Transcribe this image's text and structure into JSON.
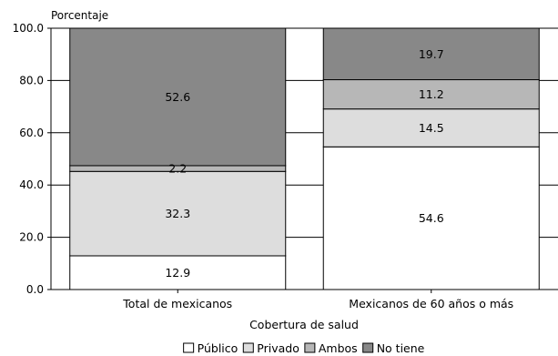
{
  "chart_data": {
    "type": "bar",
    "stacked": true,
    "title": "",
    "ylabel": "Porcentaje",
    "xlabel": "Cobertura de salud",
    "ylim": [
      0,
      100
    ],
    "yticks": [
      "0.0",
      "20.0",
      "40.0",
      "60.0",
      "80.0",
      "100.0"
    ],
    "categories": [
      "Total de mexicanos",
      "Mexicanos de 60 años o más"
    ],
    "series": [
      {
        "name": "Público",
        "values": [
          12.9,
          54.6
        ],
        "labels": [
          "12.9",
          "54.6"
        ],
        "color": "#ffffff"
      },
      {
        "name": "Privado",
        "values": [
          32.3,
          14.5
        ],
        "labels": [
          "32.3",
          "14.5"
        ],
        "color": "#dddddd"
      },
      {
        "name": "Ambos",
        "values": [
          2.2,
          11.2
        ],
        "labels": [
          "2.2",
          "11.2"
        ],
        "color": "#b7b7b7"
      },
      {
        "name": "No tiene",
        "values": [
          52.6,
          19.7
        ],
        "labels": [
          "52.6",
          "19.7"
        ],
        "color": "#888888"
      }
    ],
    "grid": true,
    "legend": "bottom"
  }
}
